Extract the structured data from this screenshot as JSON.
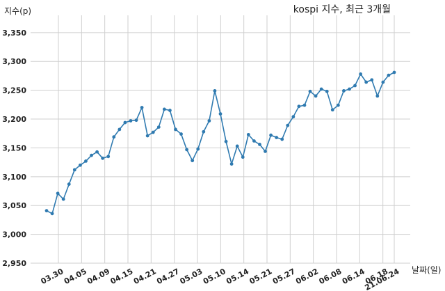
{
  "chart_data": {
    "type": "line",
    "title": "kospi 지수, 최근 3개월",
    "xlabel": "날짜(일)",
    "ylabel": "지수(p)",
    "ylim": [
      2950,
      3380
    ],
    "yticks": [
      2950,
      3000,
      3050,
      3100,
      3150,
      3200,
      3250,
      3300,
      3350
    ],
    "ytick_labels": [
      "2,950",
      "3,000",
      "3,050",
      "3,100",
      "3,150",
      "3,200",
      "3,250",
      "3,300",
      "3,350"
    ],
    "xtick_labels": [
      "03.30",
      "04.05",
      "04.09",
      "04.15",
      "04.21",
      "04.27",
      "05.03",
      "05.10",
      "05.14",
      "05.21",
      "05.27",
      "06.02",
      "06.08",
      "06.14",
      "06.18",
      "21.06.24"
    ],
    "grid": true,
    "color": "#2f7ab0",
    "x": [
      "03.26",
      "03.29",
      "03.30",
      "03.31",
      "04.01",
      "04.02",
      "04.05",
      "04.06",
      "04.07",
      "04.08",
      "04.09",
      "04.12",
      "04.13",
      "04.14",
      "04.15",
      "04.16",
      "04.19",
      "04.20",
      "04.21",
      "04.22",
      "04.23",
      "04.26",
      "04.27",
      "04.28",
      "04.29",
      "04.30",
      "05.03",
      "05.04",
      "05.06",
      "05.07",
      "05.10",
      "05.11",
      "05.12",
      "05.13",
      "05.14",
      "05.17",
      "05.18",
      "05.20",
      "05.21",
      "05.24",
      "05.25",
      "05.26",
      "05.27",
      "05.28",
      "05.31",
      "06.01",
      "06.02",
      "06.03",
      "06.04",
      "06.07",
      "06.08",
      "06.09",
      "06.10",
      "06.11",
      "06.14",
      "06.15",
      "06.16",
      "06.17",
      "06.18",
      "06.21",
      "06.22",
      "06.23",
      "06.24"
    ],
    "values": [
      3041,
      3036,
      3071,
      3061,
      3087,
      3112,
      3120,
      3127,
      3137,
      3143,
      3132,
      3135,
      3169,
      3182,
      3194,
      3197,
      3198,
      3220,
      3171,
      3177,
      3186,
      3217,
      3215,
      3182,
      3174,
      3147,
      3128,
      3148,
      3178,
      3197,
      3249,
      3209,
      3161,
      3122,
      3153,
      3134,
      3173,
      3162,
      3156,
      3144,
      3172,
      3168,
      3165,
      3189,
      3204,
      3222,
      3224,
      3248,
      3240,
      3252,
      3248,
      3216,
      3224,
      3249,
      3252,
      3258,
      3278,
      3264,
      3268,
      3240,
      3264,
      3276,
      3281
    ]
  }
}
